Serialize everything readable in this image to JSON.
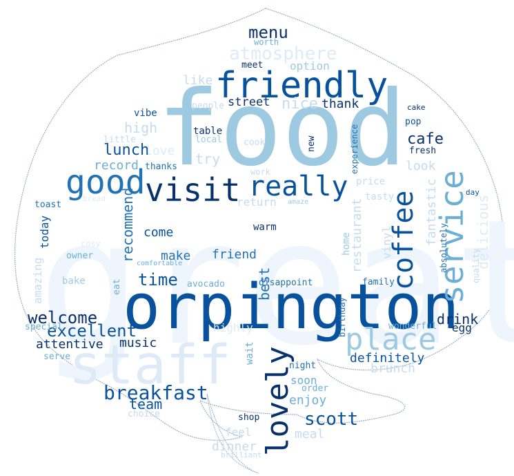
{
  "palette": {
    "c1": "#08306b",
    "c2": "#08519c",
    "c3": "#2171b5",
    "c4": "#4292c6",
    "c5": "#6baed6",
    "c6": "#9ecae1",
    "c7": "#c6dbef",
    "c8": "#deebf7",
    "c9": "#eef5fc",
    "outline": "#9aaec8"
  },
  "words": [
    {
      "id": "great",
      "text": "great",
      "color": "c9"
    },
    {
      "id": "food",
      "text": "food",
      "color": "c6"
    },
    {
      "id": "orpington",
      "text": "orpington",
      "color": "c2"
    },
    {
      "id": "staff",
      "text": "staff",
      "color": "c8"
    },
    {
      "id": "friendly",
      "text": "friendly",
      "color": "c2"
    },
    {
      "id": "visit",
      "text": "visit",
      "color": "c1"
    },
    {
      "id": "really",
      "text": "really",
      "color": "c2"
    },
    {
      "id": "good",
      "text": "good",
      "color": "c3"
    },
    {
      "id": "service",
      "text": "service",
      "color": "c5"
    },
    {
      "id": "coffee",
      "text": "coffee",
      "color": "c2"
    },
    {
      "id": "place",
      "text": "place",
      "color": "c6"
    },
    {
      "id": "lovely",
      "text": "lovely",
      "color": "c1"
    },
    {
      "id": "menu",
      "text": "menu",
      "color": "c1"
    },
    {
      "id": "atmosphere",
      "text": "atmosphere",
      "color": "c8"
    },
    {
      "id": "worth",
      "text": "worth",
      "color": "c5"
    },
    {
      "id": "meet",
      "text": "meet",
      "color": "c1"
    },
    {
      "id": "option",
      "text": "option",
      "color": "c6"
    },
    {
      "id": "like",
      "text": "like",
      "color": "c7"
    },
    {
      "id": "people",
      "text": "people",
      "color": "c7"
    },
    {
      "id": "street",
      "text": "street",
      "color": "c1"
    },
    {
      "id": "nice",
      "text": "nice",
      "color": "c7"
    },
    {
      "id": "thank",
      "text": "thank",
      "color": "c1"
    },
    {
      "id": "cafe",
      "text": "cafe",
      "color": "c1"
    },
    {
      "id": "cake",
      "text": "cake",
      "color": "c1"
    },
    {
      "id": "pop",
      "text": "pop",
      "color": "c2"
    },
    {
      "id": "fresh",
      "text": "fresh",
      "color": "c1"
    },
    {
      "id": "vibe",
      "text": "vibe",
      "color": "c2"
    },
    {
      "id": "high",
      "text": "high",
      "color": "c7"
    },
    {
      "id": "little",
      "text": "little",
      "color": "c7"
    },
    {
      "id": "table",
      "text": "table",
      "color": "c1"
    },
    {
      "id": "local",
      "text": "local",
      "color": "c6"
    },
    {
      "id": "lunch",
      "text": "lunch",
      "color": "c2"
    },
    {
      "id": "love",
      "text": "love",
      "color": "c8"
    },
    {
      "id": "cook",
      "text": "cook",
      "color": "c7"
    },
    {
      "id": "new",
      "text": "new",
      "color": "c1"
    },
    {
      "id": "experience",
      "text": "experience",
      "color": "c3"
    },
    {
      "id": "try",
      "text": "try",
      "color": "c7"
    },
    {
      "id": "record",
      "text": "record",
      "color": "c5"
    },
    {
      "id": "thanks",
      "text": "thanks",
      "color": "c3"
    },
    {
      "id": "look",
      "text": "look",
      "color": "c7"
    },
    {
      "id": "work",
      "text": "work",
      "color": "c7"
    },
    {
      "id": "price",
      "text": "price",
      "color": "c7"
    },
    {
      "id": "day",
      "text": "day",
      "color": "c2"
    },
    {
      "id": "toast",
      "text": "toast",
      "color": "c3"
    },
    {
      "id": "bread",
      "text": "bread",
      "color": "c8"
    },
    {
      "id": "return",
      "text": "return",
      "color": "c7"
    },
    {
      "id": "amaze",
      "text": "amaze",
      "color": "c6"
    },
    {
      "id": "tasty",
      "text": "tasty",
      "color": "c7"
    },
    {
      "id": "fantastic",
      "text": "fantastic",
      "color": "c7"
    },
    {
      "id": "delicious",
      "text": "delicious",
      "color": "c8"
    },
    {
      "id": "today",
      "text": "today",
      "color": "c2"
    },
    {
      "id": "recommend",
      "text": "recommend",
      "color": "c3"
    },
    {
      "id": "come",
      "text": "come",
      "color": "c2"
    },
    {
      "id": "warm",
      "text": "warm",
      "color": "c1"
    },
    {
      "id": "vinyl",
      "text": "vinyl",
      "color": "c7"
    },
    {
      "id": "absolutely",
      "text": "absolutely",
      "color": "c3"
    },
    {
      "id": "quality",
      "text": "quality",
      "color": "c7"
    },
    {
      "id": "restaurant",
      "text": "restaurant",
      "color": "c7"
    },
    {
      "id": "home",
      "text": "home",
      "color": "c6"
    },
    {
      "id": "make",
      "text": "make",
      "color": "c3"
    },
    {
      "id": "friend",
      "text": "friend",
      "color": "c3"
    },
    {
      "id": "owner",
      "text": "owner",
      "color": "c5"
    },
    {
      "id": "cosy",
      "text": "cosy",
      "color": "c8"
    },
    {
      "id": "comfortable",
      "text": "comfortable",
      "color": "c5"
    },
    {
      "id": "amazing",
      "text": "amazing",
      "color": "c7"
    },
    {
      "id": "bake",
      "text": "bake",
      "color": "c6"
    },
    {
      "id": "time",
      "text": "time",
      "color": "c2"
    },
    {
      "id": "avocado",
      "text": "avocado",
      "color": "c5"
    },
    {
      "id": "disappoint",
      "text": "disappoint",
      "color": "c3"
    },
    {
      "id": "best",
      "text": "best",
      "color": "c3"
    },
    {
      "id": "family",
      "text": "family",
      "color": "c3"
    },
    {
      "id": "eat",
      "text": "eat",
      "color": "c5"
    },
    {
      "id": "welcome",
      "text": "welcome",
      "color": "c1"
    },
    {
      "id": "excellent",
      "text": "excellent",
      "color": "c2"
    },
    {
      "id": "special",
      "text": "special",
      "color": "c5"
    },
    {
      "id": "attentive",
      "text": "attentive",
      "color": "c1"
    },
    {
      "id": "music",
      "text": "music",
      "color": "c1"
    },
    {
      "id": "highly",
      "text": "highly",
      "color": "c8"
    },
    {
      "id": "drink",
      "text": "drink",
      "color": "c1"
    },
    {
      "id": "egg",
      "text": "egg",
      "color": "c1"
    },
    {
      "id": "wonderful",
      "text": "wonderful",
      "color": "c5"
    },
    {
      "id": "birthday",
      "text": "birthday",
      "color": "c3"
    },
    {
      "id": "serve",
      "text": "serve",
      "color": "c5"
    },
    {
      "id": "wait",
      "text": "wait",
      "color": "c5"
    },
    {
      "id": "definitely",
      "text": "definitely",
      "color": "c2"
    },
    {
      "id": "brunch",
      "text": "brunch",
      "color": "c7"
    },
    {
      "id": "breakfast",
      "text": "breakfast",
      "color": "c2"
    },
    {
      "id": "team",
      "text": "team",
      "color": "c2"
    },
    {
      "id": "night",
      "text": "night",
      "color": "c3"
    },
    {
      "id": "soon",
      "text": "soon",
      "color": "c5"
    },
    {
      "id": "order",
      "text": "order",
      "color": "c5"
    },
    {
      "id": "enjoy",
      "text": "enjoy",
      "color": "c5"
    },
    {
      "id": "choice",
      "text": "choice",
      "color": "c7"
    },
    {
      "id": "scott",
      "text": "scott",
      "color": "c2"
    },
    {
      "id": "shop",
      "text": "shop",
      "color": "c1"
    },
    {
      "id": "feel",
      "text": "feel",
      "color": "c7"
    },
    {
      "id": "meal",
      "text": "meal",
      "color": "c7"
    },
    {
      "id": "dinner",
      "text": "dinner",
      "color": "c7"
    },
    {
      "id": "brilliant",
      "text": "brilliant",
      "color": "c7"
    }
  ]
}
